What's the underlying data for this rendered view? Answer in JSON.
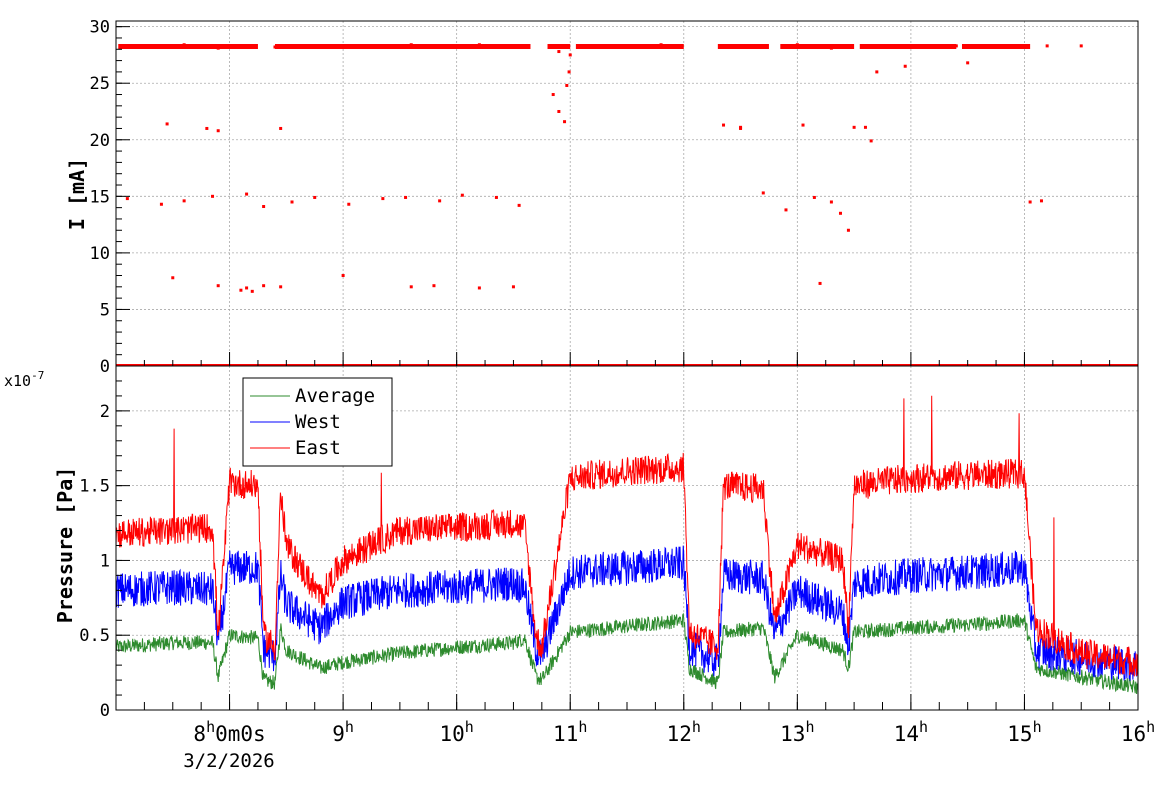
{
  "chart_data": [
    {
      "type": "scatter",
      "ylabel": "I [mA]",
      "ylim": [
        0,
        30.5
      ],
      "yticks": [
        "0",
        "5",
        "10",
        "15",
        "20",
        "25",
        "30"
      ],
      "grid": true,
      "series": [
        {
          "color": "#ff0000",
          "x": [
            7.1,
            7.3,
            7.6,
            7.9,
            8.1,
            8.4,
            8.7,
            9.0,
            9.3,
            9.6,
            9.9,
            10.2,
            10.5,
            10.9,
            11.2,
            11.5,
            11.8,
            12.4,
            12.7,
            13.0,
            13.3,
            13.6,
            13.8,
            14.1,
            14.4,
            14.7,
            15.0,
            15.2,
            15.5,
            7.5,
            7.9,
            8.1,
            8.15,
            8.2,
            8.3,
            8.45,
            9.0,
            9.6,
            9.8,
            10.2,
            10.5,
            13.2,
            7.1,
            7.4,
            7.6,
            7.85,
            8.15,
            8.3,
            8.55,
            8.75,
            9.05,
            9.35,
            9.55,
            9.85,
            10.05,
            10.35,
            10.55,
            12.7,
            12.9,
            13.15,
            13.3,
            13.38,
            13.45,
            15.05,
            15.15,
            7.45,
            7.8,
            7.9,
            8.45,
            12.35,
            12.5,
            12.5,
            13.05,
            13.5,
            13.6,
            13.65,
            10.85,
            10.9,
            10.95,
            10.97,
            10.99,
            11.0,
            13.7,
            13.95,
            14.5
          ],
          "y": [
            28.3,
            28.2,
            28.4,
            28.1,
            28.3,
            28.2,
            28.3,
            28.2,
            28.3,
            28.4,
            28.3,
            28.4,
            28.3,
            27.8,
            28.2,
            28.3,
            28.4,
            28.3,
            28.2,
            28.4,
            28.1,
            28.3,
            28.2,
            28.3,
            28.3,
            28.2,
            28.3,
            28.3,
            28.3,
            7.8,
            7.1,
            6.7,
            6.9,
            6.6,
            7.1,
            7.0,
            8.0,
            7.0,
            7.1,
            6.9,
            7.0,
            7.3,
            14.8,
            14.3,
            14.6,
            15.0,
            15.2,
            14.1,
            14.5,
            14.9,
            14.3,
            14.8,
            14.9,
            14.6,
            15.1,
            14.9,
            14.2,
            15.3,
            13.8,
            14.9,
            14.5,
            13.5,
            12.0,
            14.5,
            14.6,
            21.4,
            21.0,
            20.8,
            21.0,
            21.3,
            21.1,
            21.0,
            21.3,
            21.1,
            21.1,
            19.9,
            24.0,
            22.5,
            21.6,
            24.8,
            26.0,
            27.5,
            26.0,
            26.5,
            26.8
          ]
        }
      ]
    },
    {
      "type": "line",
      "xlabel": "",
      "ylabel": "Pressure [Pa]",
      "yexponent": "x10^{-7}",
      "ylim": [
        0,
        2.3
      ],
      "yticks": [
        "0",
        "0.5",
        "1",
        "1.5",
        "2"
      ],
      "xlim": [
        7.0,
        16.0
      ],
      "x_ticks": [
        {
          "main": "8",
          "sup": "h",
          "extra": "0m0s",
          "value": 8
        },
        {
          "main": "9",
          "sup": "h",
          "value": 9
        },
        {
          "main": "10",
          "sup": "h",
          "value": 10
        },
        {
          "main": "11",
          "sup": "h",
          "value": 11
        },
        {
          "main": "12",
          "sup": "h",
          "value": 12
        },
        {
          "main": "13",
          "sup": "h",
          "value": 13
        },
        {
          "main": "14",
          "sup": "h",
          "value": 14
        },
        {
          "main": "15",
          "sup": "h",
          "value": 15
        },
        {
          "main": "16",
          "sup": "h",
          "value": 16
        }
      ],
      "x_superscript": "h",
      "date_label": "3/2/2026",
      "legend_position": "top-left",
      "grid": true,
      "series": [
        {
          "name": "Average",
          "color": "#2e8b2e",
          "x": [
            7.0,
            7.5,
            7.85,
            7.9,
            8.0,
            8.25,
            8.3,
            8.4,
            8.45,
            8.5,
            8.8,
            9.0,
            9.5,
            10.0,
            10.5,
            10.6,
            10.7,
            10.75,
            11.0,
            11.5,
            12.0,
            12.05,
            12.3,
            12.35,
            12.7,
            12.8,
            13.0,
            13.4,
            13.45,
            13.5,
            14.0,
            14.5,
            15.0,
            15.1,
            15.5,
            16.0
          ],
          "y": [
            0.42,
            0.45,
            0.45,
            0.22,
            0.5,
            0.48,
            0.2,
            0.18,
            0.55,
            0.4,
            0.28,
            0.32,
            0.38,
            0.42,
            0.45,
            0.48,
            0.22,
            0.2,
            0.52,
            0.56,
            0.6,
            0.28,
            0.18,
            0.52,
            0.55,
            0.22,
            0.5,
            0.4,
            0.28,
            0.52,
            0.55,
            0.57,
            0.6,
            0.28,
            0.22,
            0.15
          ]
        },
        {
          "name": "West",
          "color": "#0000ff",
          "x": [
            7.0,
            7.5,
            7.85,
            7.9,
            8.0,
            8.25,
            8.3,
            8.4,
            8.45,
            8.5,
            8.8,
            9.0,
            9.5,
            10.0,
            10.5,
            10.6,
            10.7,
            10.75,
            11.0,
            11.5,
            12.0,
            12.05,
            12.3,
            12.35,
            12.7,
            12.8,
            13.0,
            13.4,
            13.45,
            13.5,
            14.0,
            14.5,
            15.0,
            15.1,
            15.5,
            16.0
          ],
          "y": [
            0.8,
            0.82,
            0.8,
            0.45,
            0.95,
            0.95,
            0.4,
            0.36,
            0.9,
            0.7,
            0.55,
            0.72,
            0.8,
            0.82,
            0.85,
            0.82,
            0.4,
            0.36,
            0.92,
            0.95,
            0.98,
            0.42,
            0.32,
            0.9,
            0.88,
            0.5,
            0.8,
            0.65,
            0.42,
            0.85,
            0.9,
            0.92,
            0.95,
            0.4,
            0.35,
            0.3
          ]
        },
        {
          "name": "East",
          "color": "#ff0000",
          "x": [
            7.0,
            7.5,
            7.85,
            7.9,
            8.0,
            8.25,
            8.3,
            8.4,
            8.45,
            8.5,
            8.8,
            9.0,
            9.5,
            10.0,
            10.5,
            10.6,
            10.7,
            10.75,
            11.0,
            11.5,
            12.0,
            12.05,
            12.3,
            12.35,
            12.7,
            12.8,
            13.0,
            13.4,
            13.45,
            13.5,
            14.0,
            14.5,
            15.0,
            15.1,
            15.5,
            16.0
          ],
          "y": [
            1.18,
            1.2,
            1.22,
            0.5,
            1.52,
            1.5,
            0.5,
            0.42,
            1.45,
            1.1,
            0.75,
            1.0,
            1.2,
            1.22,
            1.25,
            1.22,
            0.48,
            0.42,
            1.55,
            1.6,
            1.62,
            0.52,
            0.42,
            1.5,
            1.48,
            0.6,
            1.1,
            1.0,
            0.55,
            1.5,
            1.55,
            1.57,
            1.58,
            0.55,
            0.38,
            0.32
          ]
        }
      ]
    }
  ]
}
